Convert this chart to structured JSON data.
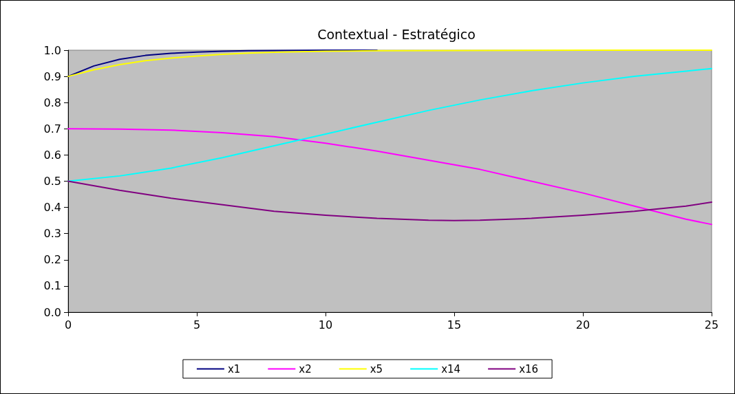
{
  "chart_data": {
    "type": "line",
    "title": "Contextual - Estratégico",
    "x": [
      0,
      1,
      2,
      3,
      4,
      5,
      6,
      7,
      8,
      10,
      12,
      15,
      20,
      25
    ],
    "series": [
      {
        "name": "x1",
        "color": "#000080",
        "values": [
          0.9,
          0.94,
          0.965,
          0.98,
          0.988,
          0.993,
          0.996,
          0.998,
          0.999,
          1.0,
          1.0,
          null,
          null,
          null
        ]
      },
      {
        "name": "x2",
        "color": "#ff00ff",
        "x": [
          0,
          2,
          4,
          6,
          8,
          10,
          12,
          14,
          16,
          18,
          20,
          22,
          24,
          25
        ],
        "values": [
          0.7,
          0.699,
          0.695,
          0.685,
          0.67,
          0.645,
          0.615,
          0.58,
          0.545,
          0.5,
          0.455,
          0.405,
          0.355,
          0.335
        ]
      },
      {
        "name": "x5",
        "color": "#ffff00",
        "values": [
          0.9,
          0.925,
          0.945,
          0.96,
          0.97,
          0.978,
          0.984,
          0.989,
          0.992,
          0.996,
          0.998,
          0.999,
          1.0,
          1.0
        ]
      },
      {
        "name": "x14",
        "color": "#00ffff",
        "x": [
          0,
          2,
          4,
          6,
          8,
          10,
          12,
          14,
          16,
          18,
          20,
          22,
          24,
          25
        ],
        "values": [
          0.5,
          0.52,
          0.55,
          0.59,
          0.635,
          0.68,
          0.725,
          0.77,
          0.81,
          0.845,
          0.875,
          0.9,
          0.92,
          0.93
        ]
      },
      {
        "name": "x16",
        "color": "#800080",
        "x": [
          0,
          2,
          4,
          6,
          8,
          10,
          12,
          14,
          15,
          16,
          18,
          20,
          22,
          24,
          25
        ],
        "values": [
          0.5,
          0.465,
          0.435,
          0.41,
          0.385,
          0.37,
          0.358,
          0.351,
          0.35,
          0.351,
          0.358,
          0.37,
          0.385,
          0.405,
          0.42
        ]
      }
    ],
    "xlim": [
      0,
      25
    ],
    "xticks": [
      0,
      5,
      10,
      15,
      20,
      25
    ],
    "ylim": [
      0,
      1
    ],
    "yticks": [
      {
        "value": 0,
        "label": "0.0"
      },
      0.1,
      0.2,
      0.3,
      0.4,
      0.5,
      0.6,
      0.7,
      0.8,
      0.9,
      {
        "value": 1,
        "label": "1.0"
      }
    ],
    "grid": false,
    "legend": "bottom",
    "marker": "none",
    "line_style": "solid"
  }
}
